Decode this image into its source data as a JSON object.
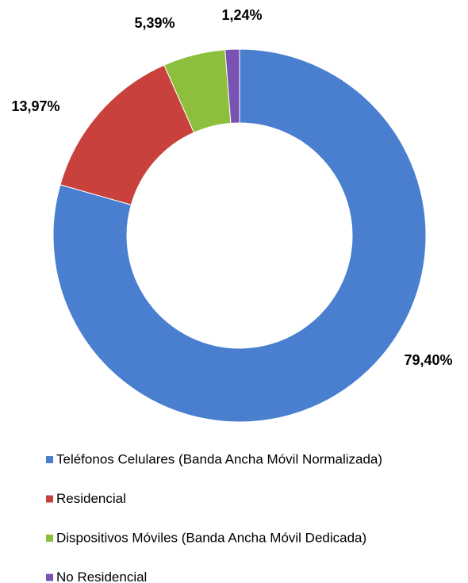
{
  "chart_data": {
    "type": "pie",
    "donut": true,
    "categories": [
      "Teléfonos Celulares (Banda Ancha Móvil Normalizada)",
      "Residencial",
      "Dispositivos Móviles (Banda Ancha Móvil Dedicada)",
      "No Residencial"
    ],
    "values": [
      79.4,
      13.97,
      5.39,
      1.24
    ],
    "value_labels": [
      "79,40%",
      "13,97%",
      "5,39%",
      "1,24%"
    ],
    "colors": [
      "#4a7fd0",
      "#c9413c",
      "#8dbf3d",
      "#7a52b3"
    ]
  }
}
